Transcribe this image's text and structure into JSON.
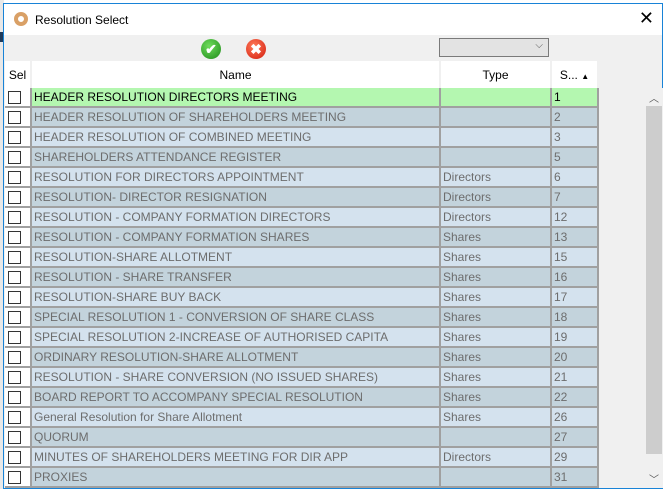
{
  "window": {
    "title": "Resolution Select",
    "close": "✕"
  },
  "toolbar": {
    "ok": "✔",
    "cancel": "✖",
    "filter_value": ""
  },
  "columns": [
    "Sel",
    "Name",
    "Type",
    "S..."
  ],
  "sort_indicator": "▲",
  "rows": [
    {
      "name": "HEADER RESOLUTION DIRECTORS MEETING",
      "type": "",
      "s": "1",
      "selected": true
    },
    {
      "name": "HEADER RESOLUTION OF SHAREHOLDERS MEETING",
      "type": "",
      "s": "2"
    },
    {
      "name": "HEADER RESOLUTION OF COMBINED MEETING",
      "type": "",
      "s": "3"
    },
    {
      "name": "SHAREHOLDERS ATTENDANCE REGISTER",
      "type": "",
      "s": "5"
    },
    {
      "name": "RESOLUTION FOR DIRECTORS APPOINTMENT",
      "type": "Directors",
      "s": "6"
    },
    {
      "name": "RESOLUTION- DIRECTOR RESIGNATION",
      "type": "Directors",
      "s": "7"
    },
    {
      "name": "RESOLUTION - COMPANY FORMATION DIRECTORS",
      "type": "Directors",
      "s": "12"
    },
    {
      "name": "RESOLUTION - COMPANY FORMATION SHARES",
      "type": "Shares",
      "s": "13"
    },
    {
      "name": "RESOLUTION-SHARE ALLOTMENT",
      "type": "Shares",
      "s": "15"
    },
    {
      "name": "RESOLUTION - SHARE TRANSFER",
      "type": "Shares",
      "s": "16"
    },
    {
      "name": "RESOLUTION-SHARE BUY BACK",
      "type": "Shares",
      "s": "17"
    },
    {
      "name": "SPECIAL RESOLUTION 1 - CONVERSION OF SHARE CLASS",
      "type": "Shares",
      "s": "18"
    },
    {
      "name": "SPECIAL RESOLUTION 2-INCREASE OF AUTHORISED CAPITA",
      "type": "Shares",
      "s": "19"
    },
    {
      "name": "ORDINARY RESOLUTION-SHARE ALLOTMENT",
      "type": "Shares",
      "s": "20"
    },
    {
      "name": "RESOLUTION - SHARE CONVERSION (NO ISSUED SHARES)",
      "type": "Shares",
      "s": "21"
    },
    {
      "name": "BOARD REPORT TO ACCOMPANY SPECIAL RESOLUTION",
      "type": "Shares",
      "s": "22"
    },
    {
      "name": "General Resolution for Share Allotment",
      "type": "Shares",
      "s": "26"
    },
    {
      "name": "QUORUM",
      "type": "",
      "s": "27"
    },
    {
      "name": "MINUTES OF SHAREHOLDERS MEETING FOR DIR APP",
      "type": "Directors",
      "s": "29"
    },
    {
      "name": "PROXIES",
      "type": "",
      "s": "31"
    }
  ],
  "colors": {
    "selected_row": "#b4f7b0",
    "row_even": "#c3d3dc",
    "row_odd": "#d4e2ee"
  }
}
